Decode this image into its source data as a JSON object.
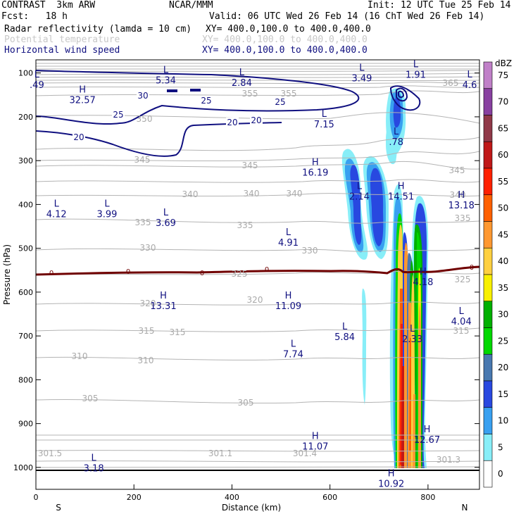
{
  "header": {
    "model": "CONTRAST  3km ARW",
    "org": "NCAR/MMM",
    "init": "Init: 12 UTC Tue 25 Feb 14",
    "fcst": "Fcst:   18 h",
    "valid": "Valid: 06 UTC Wed 26 Feb 14 (16 ChT Wed 26 Feb 14)",
    "field1": "Radar reflectivity (lamda = 10 cm)",
    "field1_xy": "XY= 400.0,100.0 to 400.0,400.0",
    "field2": "Potential temperature",
    "field2_xy": "XY= 400.0,100.0 to 400.0,400.0",
    "field3": "Horizontal wind speed",
    "field3_xy": "XY= 400.0,100.0 to 400.0,400.0"
  },
  "chart_data": {
    "type": "cross-section",
    "title": "Radar reflectivity / Potential temperature / Horizontal wind speed",
    "xlabel": "Distance (km)",
    "ylabel": "Pressure (hPa)",
    "xlim": [
      0,
      905
    ],
    "ylim": [
      1050,
      70
    ],
    "x_ticks": [
      0,
      200,
      400,
      600,
      800
    ],
    "x_tick_labels": [
      "0",
      "200",
      "400",
      "600",
      "800"
    ],
    "y_ticks": [
      100,
      200,
      300,
      400,
      500,
      600,
      700,
      800,
      900,
      1000
    ],
    "y_tick_labels": [
      "100",
      "200",
      "300",
      "400",
      "500",
      "600",
      "700",
      "800",
      "900",
      "1000"
    ],
    "x_end_labels": {
      "left": "S",
      "right": "N"
    },
    "colorbar": {
      "unit": "dBZ",
      "levels": [
        "75",
        "70",
        "65",
        "60",
        "55",
        "50",
        "45",
        "40",
        "35",
        "30",
        "25",
        "20",
        "15",
        "10",
        "5",
        "0"
      ],
      "colors": [
        "#c080c8",
        "#8840a0",
        "#903848",
        "#c01818",
        "#ff2000",
        "#ff6000",
        "#ff9830",
        "#ffd040",
        "#f8f000",
        "#00b000",
        "#00d800",
        "#4878b0",
        "#2848e0",
        "#38a0f0",
        "#88eef8",
        "#ffffff"
      ]
    },
    "theta_contours": {
      "levels": [
        "365",
        "355",
        "350",
        "345",
        "340",
        "335",
        "330",
        "325",
        "320",
        "315",
        "310",
        "305"
      ],
      "extremes": [
        "301.5",
        "301.1",
        "301.4",
        "301.3"
      ]
    },
    "wind_contours": {
      "levels": [
        "30",
        "25",
        "20"
      ],
      "max_label": "32.57"
    },
    "zero_line_label": "0",
    "extrema": [
      {
        "type": "L",
        "value": ".49",
        "x": 2,
        "p": 110
      },
      {
        "type": "L",
        "value": "5.34",
        "x": 265,
        "p": 100
      },
      {
        "type": "L",
        "value": "2.84",
        "x": 420,
        "p": 105
      },
      {
        "type": "L",
        "value": "3.49",
        "x": 665,
        "p": 95
      },
      {
        "type": "L",
        "value": "1.91",
        "x": 775,
        "p": 87
      },
      {
        "type": "L",
        "value": "4.6",
        "x": 885,
        "p": 110
      },
      {
        "type": "H",
        "value": "32.57",
        "x": 95,
        "p": 145
      },
      {
        "type": "L",
        "value": "7.15",
        "x": 588,
        "p": 200
      },
      {
        "type": "L",
        "value": ".78",
        "x": 735,
        "p": 240
      },
      {
        "type": "H",
        "value": "16.19",
        "x": 570,
        "p": 310
      },
      {
        "type": "L",
        "value": "2.14",
        "x": 660,
        "p": 365
      },
      {
        "type": "H",
        "value": "14.51",
        "x": 745,
        "p": 365
      },
      {
        "type": "H",
        "value": "13.18",
        "x": 868,
        "p": 385
      },
      {
        "type": "L",
        "value": "4.12",
        "x": 42,
        "p": 405
      },
      {
        "type": "L",
        "value": "3.99",
        "x": 145,
        "p": 405
      },
      {
        "type": "L",
        "value": "3.69",
        "x": 265,
        "p": 425
      },
      {
        "type": "L",
        "value": "4.91",
        "x": 515,
        "p": 470
      },
      {
        "type": "H",
        "value": "4.18",
        "x": 790,
        "p": 560
      },
      {
        "type": "H",
        "value": "13.31",
        "x": 260,
        "p": 615
      },
      {
        "type": "H",
        "value": "11.09",
        "x": 515,
        "p": 615
      },
      {
        "type": "L",
        "value": "4.04",
        "x": 868,
        "p": 650
      },
      {
        "type": "L",
        "value": "5.84",
        "x": 630,
        "p": 685
      },
      {
        "type": "L",
        "value": "2.33",
        "x": 768,
        "p": 690
      },
      {
        "type": "L",
        "value": "7.74",
        "x": 525,
        "p": 725
      },
      {
        "type": "H",
        "value": "11.07",
        "x": 570,
        "p": 935
      },
      {
        "type": "H",
        "value": "12.67",
        "x": 798,
        "p": 920
      },
      {
        "type": "L",
        "value": "3.18",
        "x": 118,
        "p": 985
      },
      {
        "type": "H",
        "value": "10.92",
        "x": 725,
        "p": 1020
      }
    ]
  }
}
